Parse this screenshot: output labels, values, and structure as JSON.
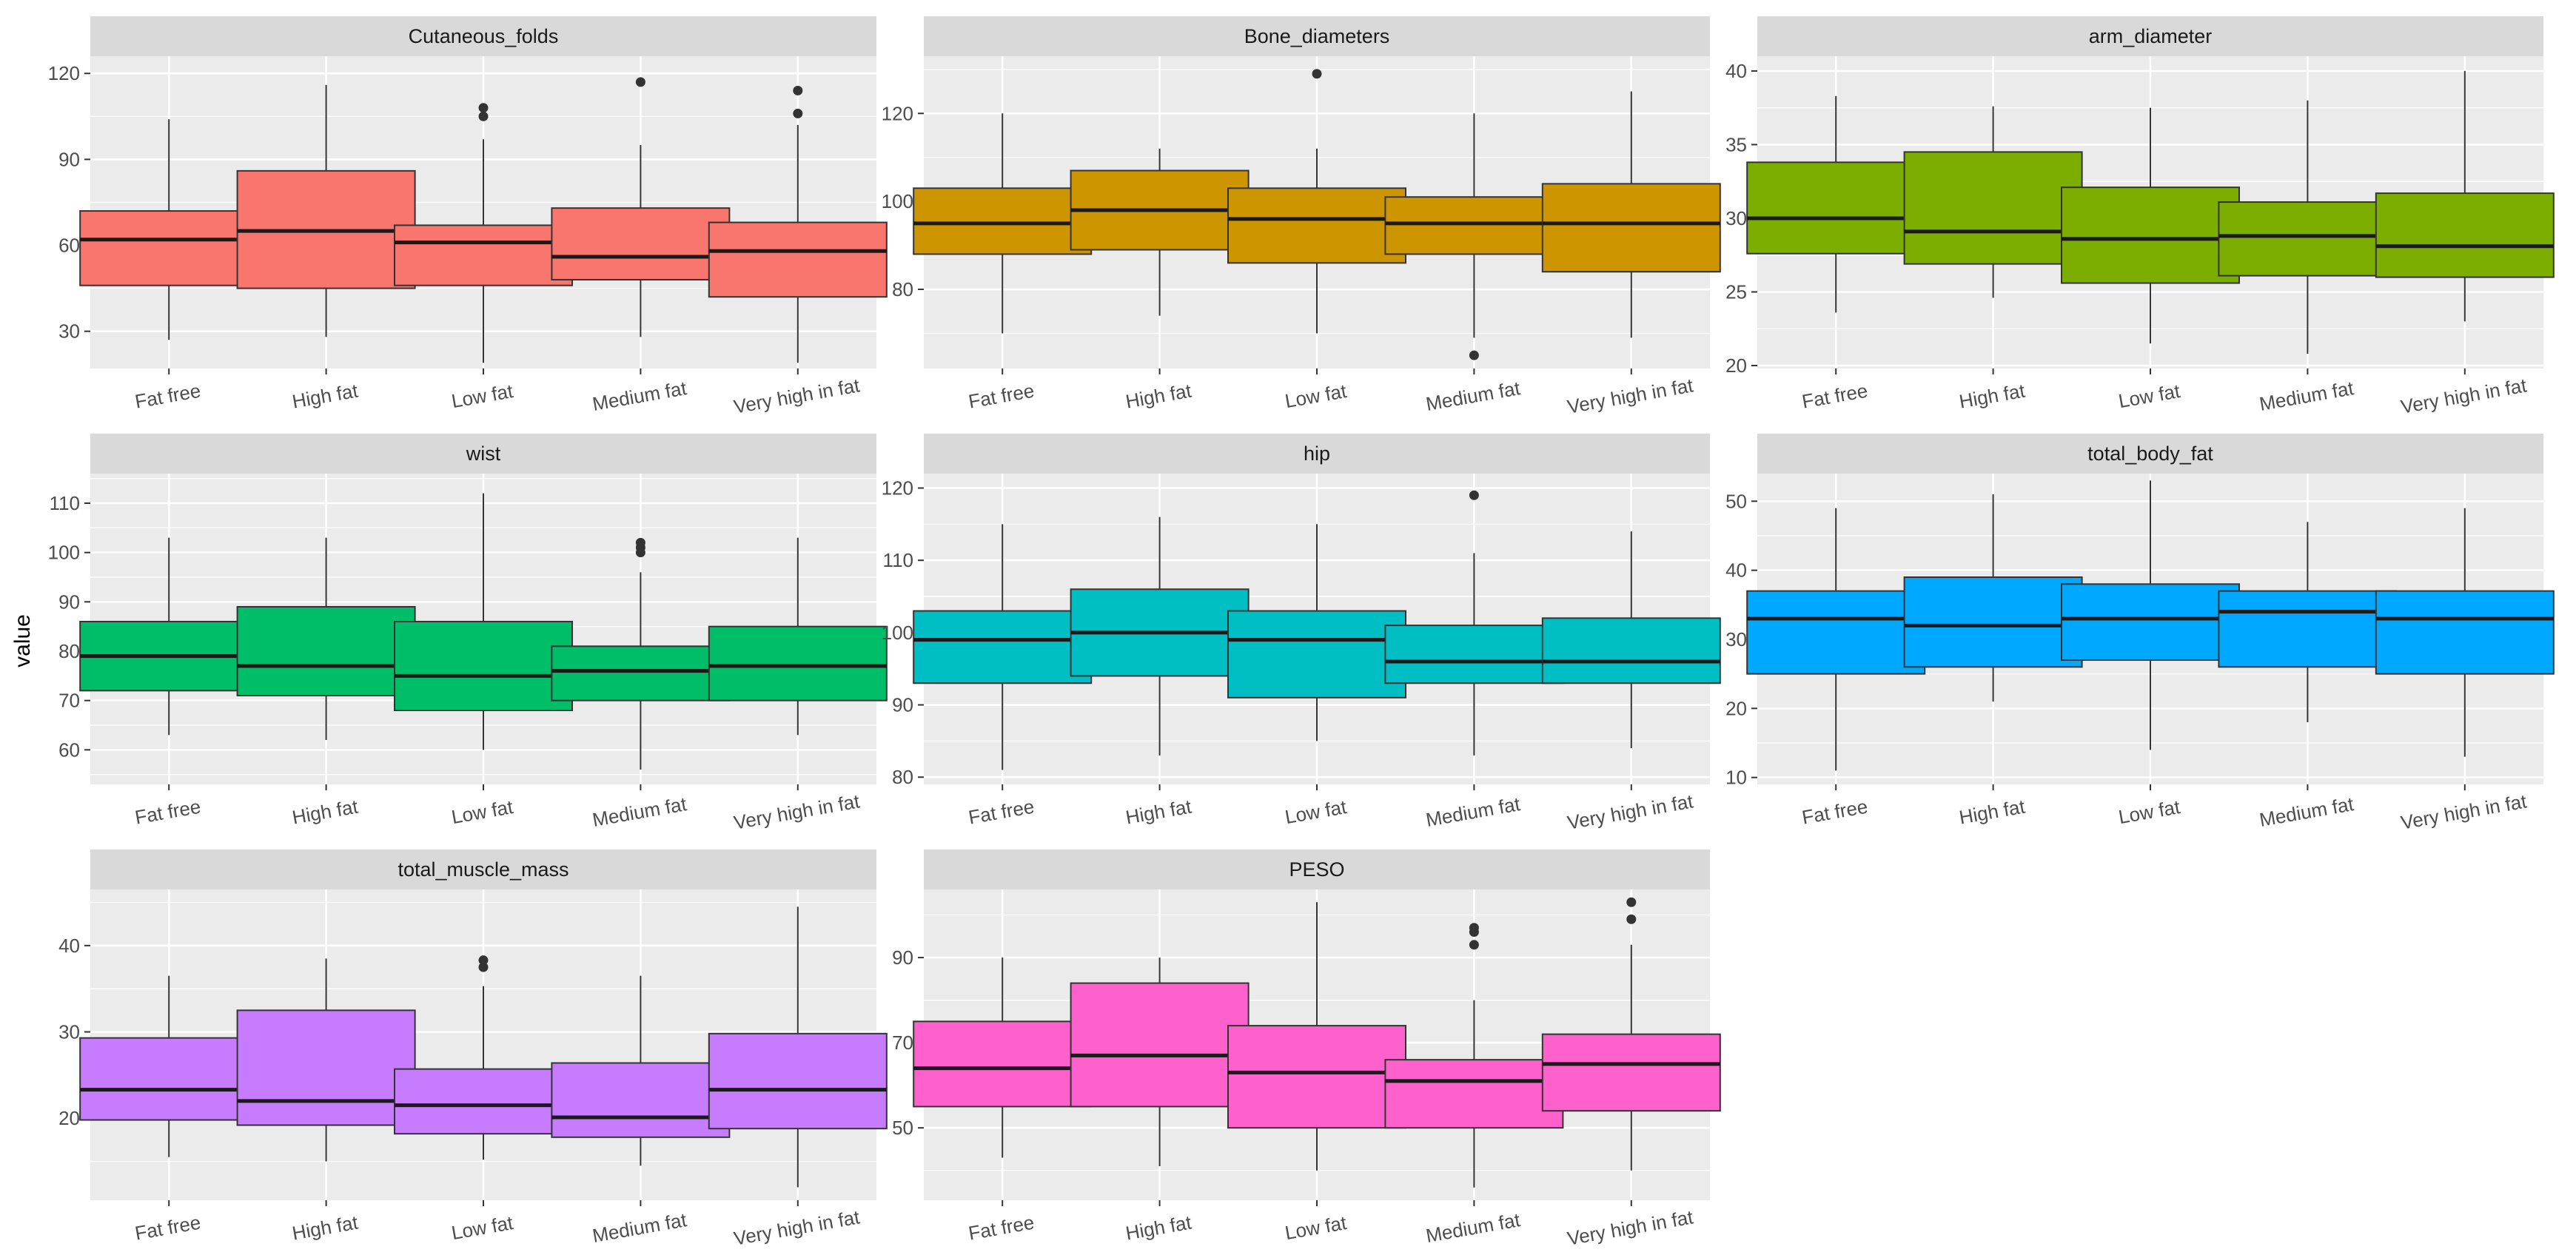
{
  "chart_data": {
    "type": "boxplot",
    "ylabel": "value",
    "categories": [
      "Fat free",
      "High fat",
      "Low fat",
      "Medium fat",
      "Very high in fat"
    ],
    "panels": [
      {
        "title": "Cutaneous_folds",
        "ylim": [
          17,
          126
        ],
        "yticks": [
          30,
          60,
          90,
          120
        ],
        "color": "#F8766D",
        "boxes": [
          {
            "category": "Fat free",
            "min": 27,
            "q1": 46,
            "median": 62,
            "q3": 72,
            "max": 104,
            "outliers": []
          },
          {
            "category": "High fat",
            "min": 28,
            "q1": 45,
            "median": 65,
            "q3": 86,
            "max": 116,
            "outliers": []
          },
          {
            "category": "Low fat",
            "min": 19,
            "q1": 46,
            "median": 61,
            "q3": 67,
            "max": 97,
            "outliers": [
              105,
              108
            ]
          },
          {
            "category": "Medium fat",
            "min": 28,
            "q1": 48,
            "median": 56,
            "q3": 73,
            "max": 95,
            "outliers": [
              117
            ]
          },
          {
            "category": "Very high in fat",
            "min": 19,
            "q1": 42,
            "median": 58,
            "q3": 68,
            "max": 102,
            "outliers": [
              106,
              114
            ]
          }
        ]
      },
      {
        "title": "Bone_diameters",
        "ylim": [
          62,
          133
        ],
        "yticks": [
          80,
          100,
          120
        ],
        "color": "#CD9600",
        "boxes": [
          {
            "category": "Fat free",
            "min": 70,
            "q1": 88,
            "median": 95,
            "q3": 103,
            "max": 120,
            "outliers": []
          },
          {
            "category": "High fat",
            "min": 74,
            "q1": 89,
            "median": 98,
            "q3": 107,
            "max": 112,
            "outliers": []
          },
          {
            "category": "Low fat",
            "min": 70,
            "q1": 86,
            "median": 96,
            "q3": 103,
            "max": 112,
            "outliers": [
              129
            ]
          },
          {
            "category": "Medium fat",
            "min": 69,
            "q1": 88,
            "median": 95,
            "q3": 101,
            "max": 120,
            "outliers": [
              65
            ]
          },
          {
            "category": "Very high in fat",
            "min": 69,
            "q1": 84,
            "median": 95,
            "q3": 104,
            "max": 125,
            "outliers": []
          }
        ]
      },
      {
        "title": "arm_diameter",
        "ylim": [
          19.8,
          41.0
        ],
        "yticks": [
          20,
          25,
          30,
          35,
          40
        ],
        "color": "#7CAE00",
        "boxes": [
          {
            "category": "Fat free",
            "min": 23.6,
            "q1": 27.6,
            "median": 30.0,
            "q3": 33.8,
            "max": 38.3,
            "outliers": []
          },
          {
            "category": "High fat",
            "min": 24.6,
            "q1": 26.9,
            "median": 29.1,
            "q3": 34.5,
            "max": 37.6,
            "outliers": []
          },
          {
            "category": "Low fat",
            "min": 21.5,
            "q1": 25.6,
            "median": 28.6,
            "q3": 32.1,
            "max": 37.5,
            "outliers": []
          },
          {
            "category": "Medium fat",
            "min": 20.8,
            "q1": 26.1,
            "median": 28.8,
            "q3": 31.1,
            "max": 38.0,
            "outliers": []
          },
          {
            "category": "Very high in fat",
            "min": 23.0,
            "q1": 26.0,
            "median": 28.1,
            "q3": 31.7,
            "max": 40.0,
            "outliers": []
          }
        ]
      },
      {
        "title": "wist",
        "ylim": [
          53,
          116
        ],
        "yticks": [
          60,
          70,
          80,
          90,
          100,
          110
        ],
        "color": "#00BE67",
        "boxes": [
          {
            "category": "Fat free",
            "min": 63,
            "q1": 72,
            "median": 79,
            "q3": 86,
            "max": 103,
            "outliers": []
          },
          {
            "category": "High fat",
            "min": 62,
            "q1": 71,
            "median": 77,
            "q3": 89,
            "max": 103,
            "outliers": []
          },
          {
            "category": "Low fat",
            "min": 60,
            "q1": 68,
            "median": 75,
            "q3": 86,
            "max": 112,
            "outliers": []
          },
          {
            "category": "Medium fat",
            "min": 56,
            "q1": 70,
            "median": 76,
            "q3": 81,
            "max": 96,
            "outliers": [
              100,
              101,
              102
            ]
          },
          {
            "category": "Very high in fat",
            "min": 63,
            "q1": 70,
            "median": 77,
            "q3": 85,
            "max": 103,
            "outliers": []
          }
        ]
      },
      {
        "title": "hip",
        "ylim": [
          79,
          122
        ],
        "yticks": [
          80,
          90,
          100,
          110,
          120
        ],
        "color": "#00BFC4",
        "boxes": [
          {
            "category": "Fat free",
            "min": 81,
            "q1": 93,
            "median": 99,
            "q3": 103,
            "max": 115,
            "outliers": []
          },
          {
            "category": "High fat",
            "min": 83,
            "q1": 94,
            "median": 100,
            "q3": 106,
            "max": 116,
            "outliers": []
          },
          {
            "category": "Low fat",
            "min": 85,
            "q1": 91,
            "median": 99,
            "q3": 103,
            "max": 115,
            "outliers": []
          },
          {
            "category": "Medium fat",
            "min": 83,
            "q1": 93,
            "median": 96,
            "q3": 101,
            "max": 111,
            "outliers": [
              119
            ]
          },
          {
            "category": "Very high in fat",
            "min": 84,
            "q1": 93,
            "median": 96,
            "q3": 102,
            "max": 114,
            "outliers": []
          }
        ]
      },
      {
        "title": "total_body_fat",
        "ylim": [
          9,
          54
        ],
        "yticks": [
          10,
          20,
          30,
          40,
          50
        ],
        "color": "#00A9FF",
        "boxes": [
          {
            "category": "Fat free",
            "min": 11,
            "q1": 25,
            "median": 33,
            "q3": 37,
            "max": 49,
            "outliers": []
          },
          {
            "category": "High fat",
            "min": 21,
            "q1": 26,
            "median": 32,
            "q3": 39,
            "max": 51,
            "outliers": []
          },
          {
            "category": "Low fat",
            "min": 14,
            "q1": 27,
            "median": 33,
            "q3": 38,
            "max": 53,
            "outliers": []
          },
          {
            "category": "Medium fat",
            "min": 18,
            "q1": 26,
            "median": 34,
            "q3": 37,
            "max": 47,
            "outliers": []
          },
          {
            "category": "Very high in fat",
            "min": 13,
            "q1": 25,
            "median": 33,
            "q3": 37,
            "max": 49,
            "outliers": []
          }
        ]
      },
      {
        "title": "total_muscle_mass",
        "ylim": [
          10.5,
          46.5
        ],
        "yticks": [
          20,
          30,
          40
        ],
        "color": "#C77CFF",
        "boxes": [
          {
            "category": "Fat free",
            "min": 15.5,
            "q1": 19.8,
            "median": 23.3,
            "q3": 29.3,
            "max": 36.5,
            "outliers": []
          },
          {
            "category": "High fat",
            "min": 15.0,
            "q1": 19.2,
            "median": 22.0,
            "q3": 32.5,
            "max": 38.5,
            "outliers": []
          },
          {
            "category": "Low fat",
            "min": 15.2,
            "q1": 18.2,
            "median": 21.5,
            "q3": 25.7,
            "max": 35.3,
            "outliers": [
              37.5,
              38.3
            ]
          },
          {
            "category": "Medium fat",
            "min": 14.5,
            "q1": 17.8,
            "median": 20.1,
            "q3": 26.4,
            "max": 36.5,
            "outliers": []
          },
          {
            "category": "Very high in fat",
            "min": 12.0,
            "q1": 18.8,
            "median": 23.3,
            "q3": 29.8,
            "max": 44.5,
            "outliers": []
          }
        ]
      },
      {
        "title": "PESO",
        "ylim": [
          33,
          106
        ],
        "yticks": [
          50,
          70,
          90
        ],
        "color": "#FF61CC",
        "boxes": [
          {
            "category": "Fat free",
            "min": 43,
            "q1": 55,
            "median": 64,
            "q3": 75,
            "max": 90,
            "outliers": []
          },
          {
            "category": "High fat",
            "min": 41,
            "q1": 55,
            "median": 67,
            "q3": 84,
            "max": 90,
            "outliers": []
          },
          {
            "category": "Low fat",
            "min": 40,
            "q1": 50,
            "median": 63,
            "q3": 74,
            "max": 103,
            "outliers": []
          },
          {
            "category": "Medium fat",
            "min": 36,
            "q1": 50,
            "median": 61,
            "q3": 66,
            "max": 80,
            "outliers": [
              93,
              96,
              97
            ]
          },
          {
            "category": "Very high in fat",
            "min": 40,
            "q1": 54,
            "median": 65,
            "q3": 72,
            "max": 93,
            "outliers": [
              99,
              103
            ]
          }
        ]
      }
    ]
  }
}
